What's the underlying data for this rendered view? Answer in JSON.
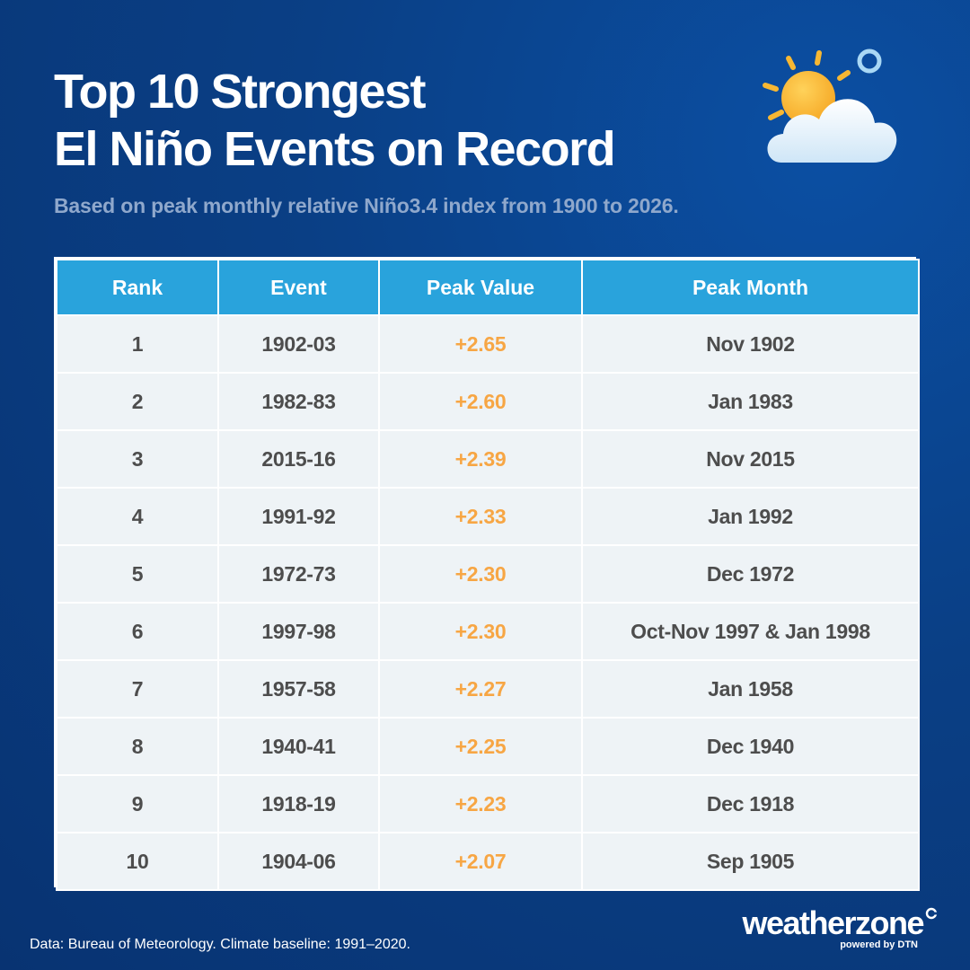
{
  "header": {
    "title_line1": "Top 10 Strongest",
    "title_line2": "El Niño Events on Record",
    "subtitle": "Based on peak monthly relative Niño3.4 index from 1900 to 2026."
  },
  "icons": {
    "weather": "sun-behind-cloud-icon",
    "brand": "weatherzone-mark-icon"
  },
  "colors": {
    "header_fill": "#29a3dc",
    "row_fill": "#eef3f6",
    "peak_value_text": "#f7a644",
    "background": "#0a3f85"
  },
  "chart_data": {
    "type": "table",
    "columns": [
      "Rank",
      "Event",
      "Peak Value",
      "Peak Month"
    ],
    "rows": [
      [
        "1",
        "1902-03",
        "+2.65",
        "Nov 1902"
      ],
      [
        "2",
        "1982-83",
        "+2.60",
        "Jan 1983"
      ],
      [
        "3",
        "2015-16",
        "+2.39",
        "Nov 2015"
      ],
      [
        "4",
        "1991-92",
        "+2.33",
        "Jan 1992"
      ],
      [
        "5",
        "1972-73",
        "+2.30",
        "Dec 1972"
      ],
      [
        "6",
        "1997-98",
        "+2.30",
        "Oct-Nov 1997 & Jan 1998"
      ],
      [
        "7",
        "1957-58",
        "+2.27",
        "Jan 1958"
      ],
      [
        "8",
        "1940-41",
        "+2.25",
        "Dec 1940"
      ],
      [
        "9",
        "1918-19",
        "+2.23",
        "Dec 1918"
      ],
      [
        "10",
        "1904-06",
        "+2.07",
        "Sep 1905"
      ]
    ]
  },
  "footer": {
    "source": "Data: Bureau of Meteorology. Climate baseline: 1991–2020.",
    "brand_name": "weatherzone",
    "brand_tagline": "powered by DTN"
  }
}
